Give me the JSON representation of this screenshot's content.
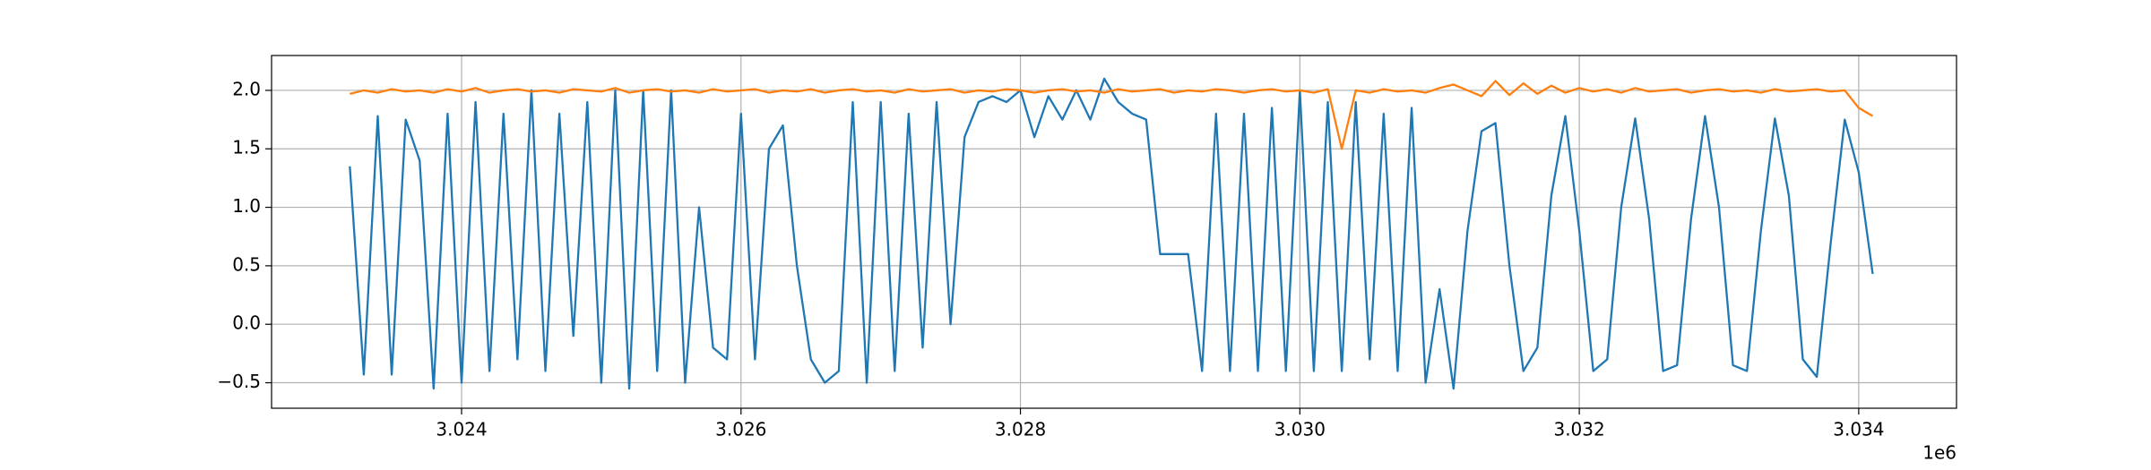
{
  "chart_data": {
    "type": "line",
    "x": [
      3023200,
      3023300,
      3023400,
      3023500,
      3023600,
      3023700,
      3023800,
      3023900,
      3024000,
      3024100,
      3024200,
      3024300,
      3024400,
      3024500,
      3024600,
      3024700,
      3024800,
      3024900,
      3025000,
      3025100,
      3025200,
      3025300,
      3025400,
      3025500,
      3025600,
      3025700,
      3025800,
      3025900,
      3026000,
      3026100,
      3026200,
      3026300,
      3026400,
      3026500,
      3026600,
      3026700,
      3026800,
      3026900,
      3027000,
      3027100,
      3027200,
      3027300,
      3027400,
      3027500,
      3027600,
      3027700,
      3027800,
      3027900,
      3028000,
      3028100,
      3028200,
      3028300,
      3028400,
      3028500,
      3028600,
      3028700,
      3028800,
      3028900,
      3029000,
      3029100,
      3029200,
      3029300,
      3029400,
      3029500,
      3029600,
      3029700,
      3029800,
      3029900,
      3030000,
      3030100,
      3030200,
      3030300,
      3030400,
      3030500,
      3030600,
      3030700,
      3030800,
      3030900,
      3031000,
      3031100,
      3031200,
      3031300,
      3031400,
      3031500,
      3031600,
      3031700,
      3031800,
      3031900,
      3032000,
      3032100,
      3032200,
      3032300,
      3032400,
      3032500,
      3032600,
      3032700,
      3032800,
      3032900,
      3033000,
      3033100,
      3033200,
      3033300,
      3033400,
      3033500,
      3033600,
      3033700,
      3033800,
      3033900,
      3034000,
      3034100
    ],
    "series": [
      {
        "color": "#1f77b4",
        "values": [
          1.35,
          -0.43,
          1.78,
          -0.43,
          1.75,
          1.4,
          -0.55,
          1.8,
          -0.5,
          1.9,
          -0.4,
          1.8,
          -0.3,
          2.0,
          -0.4,
          1.8,
          -0.1,
          1.9,
          -0.5,
          2.0,
          -0.55,
          2.0,
          -0.4,
          2.0,
          -0.5,
          1.0,
          -0.2,
          -0.3,
          1.8,
          -0.3,
          1.5,
          1.7,
          0.5,
          -0.3,
          -0.5,
          -0.4,
          1.9,
          -0.5,
          1.9,
          -0.4,
          1.8,
          -0.2,
          1.9,
          0.0,
          1.6,
          1.9,
          1.95,
          1.9,
          2.0,
          1.6,
          1.95,
          1.75,
          2.0,
          1.75,
          2.1,
          1.9,
          1.8,
          1.75,
          0.6,
          0.6,
          0.6,
          -0.4,
          1.8,
          -0.4,
          1.8,
          -0.4,
          1.85,
          -0.4,
          2.0,
          -0.4,
          1.9,
          -0.4,
          1.9,
          -0.3,
          1.8,
          -0.4,
          1.85,
          -0.5,
          0.3,
          -0.55,
          0.8,
          1.65,
          1.72,
          0.5,
          -0.4,
          -0.2,
          1.1,
          1.78,
          0.8,
          -0.4,
          -0.3,
          1.0,
          1.76,
          0.9,
          -0.4,
          -0.35,
          0.9,
          1.78,
          1.0,
          -0.35,
          -0.4,
          0.8,
          1.76,
          1.1,
          -0.3,
          -0.45,
          0.7,
          1.75,
          1.3,
          0.43
        ]
      },
      {
        "color": "#ff7f0e",
        "values": [
          1.97,
          2.0,
          1.98,
          2.01,
          1.99,
          2.0,
          1.98,
          2.01,
          1.99,
          2.02,
          1.98,
          2.0,
          2.01,
          1.99,
          2.0,
          1.98,
          2.01,
          2.0,
          1.99,
          2.02,
          1.98,
          2.0,
          2.01,
          1.99,
          2.0,
          1.98,
          2.01,
          1.99,
          2.0,
          2.01,
          1.98,
          2.0,
          1.99,
          2.01,
          1.98,
          2.0,
          2.01,
          1.99,
          2.0,
          1.98,
          2.01,
          1.99,
          2.0,
          2.01,
          1.98,
          2.0,
          1.99,
          2.01,
          2.0,
          1.98,
          2.0,
          2.01,
          1.99,
          2.0,
          1.98,
          2.01,
          1.99,
          2.0,
          2.01,
          1.98,
          2.0,
          1.99,
          2.01,
          2.0,
          1.98,
          2.0,
          2.01,
          1.99,
          2.0,
          1.98,
          2.01,
          1.5,
          2.0,
          1.98,
          2.01,
          1.99,
          2.0,
          1.98,
          2.02,
          2.05,
          2.0,
          1.95,
          2.08,
          1.96,
          2.06,
          1.97,
          2.04,
          1.98,
          2.02,
          1.99,
          2.01,
          1.98,
          2.02,
          1.99,
          2.0,
          2.01,
          1.98,
          2.0,
          2.01,
          1.99,
          2.0,
          1.98,
          2.01,
          1.99,
          2.0,
          2.01,
          1.99,
          2.0,
          1.85,
          1.78
        ]
      }
    ],
    "xlim": [
      3022640,
      3034700
    ],
    "ylim": [
      -0.718,
      2.298
    ],
    "xticks": [
      {
        "value": 3024000,
        "label": "3.024"
      },
      {
        "value": 3026000,
        "label": "3.026"
      },
      {
        "value": 3028000,
        "label": "3.028"
      },
      {
        "value": 3030000,
        "label": "3.030"
      },
      {
        "value": 3032000,
        "label": "3.032"
      },
      {
        "value": 3034000,
        "label": "3.034"
      }
    ],
    "x_offset_label": "1e6",
    "yticks": [
      {
        "value": -0.5,
        "label": "−0.5"
      },
      {
        "value": 0,
        "label": "0.0"
      },
      0.5,
      {
        "value": 1,
        "label": "1.0"
      },
      1.5,
      {
        "value": 2,
        "label": "2.0"
      }
    ],
    "grid": true
  }
}
